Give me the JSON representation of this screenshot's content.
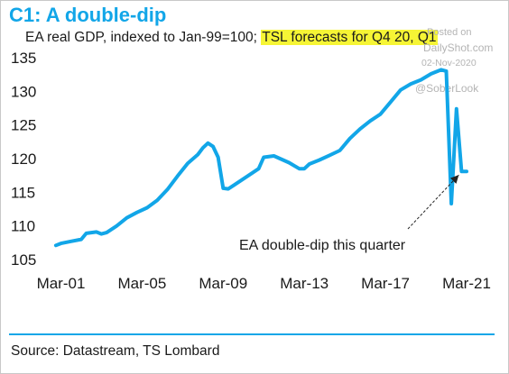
{
  "header": {
    "title": "C1: A double-dip",
    "subtitle_pre": "EA real GDP, indexed to Jan-99=100; ",
    "subtitle_highlight": "TSL forecasts for Q4 20, Q1"
  },
  "watermark": {
    "line1": "Posted on",
    "line2": "DailyShot.com",
    "line3": "02-Nov-2020",
    "line4": "@SoberLook"
  },
  "footer": {
    "source": "Source: Datastream, TS Lombard"
  },
  "colors": {
    "title": "#12a6e8",
    "series": "#12a6e8",
    "highlight": "#f6f535"
  },
  "chart_data": {
    "type": "line",
    "title": "C1: A double-dip",
    "ylim": [
      105,
      135
    ],
    "yticks": [
      105,
      110,
      115,
      120,
      125,
      130,
      135
    ],
    "xticks": [
      "Mar-01",
      "Mar-05",
      "Mar-09",
      "Mar-13",
      "Mar-17",
      "Mar-21"
    ],
    "grid": false,
    "series": [
      {
        "values": [
          [
            "2000-12",
            107.1
          ],
          [
            "2001-03",
            107.4
          ],
          [
            "2001-09",
            107.7
          ],
          [
            "2002-03",
            108.0
          ],
          [
            "2002-06",
            108.9
          ],
          [
            "2002-12",
            109.1
          ],
          [
            "2003-03",
            108.8
          ],
          [
            "2003-06",
            109.0
          ],
          [
            "2003-12",
            110.0
          ],
          [
            "2004-06",
            111.2
          ],
          [
            "2004-12",
            112.0
          ],
          [
            "2005-06",
            112.7
          ],
          [
            "2005-12",
            113.8
          ],
          [
            "2006-06",
            115.4
          ],
          [
            "2006-12",
            117.4
          ],
          [
            "2007-06",
            119.3
          ],
          [
            "2007-12",
            120.6
          ],
          [
            "2008-03",
            121.6
          ],
          [
            "2008-06",
            122.3
          ],
          [
            "2008-09",
            121.8
          ],
          [
            "2008-12",
            120.2
          ],
          [
            "2009-03",
            115.6
          ],
          [
            "2009-06",
            115.5
          ],
          [
            "2009-09",
            116.0
          ],
          [
            "2010-06",
            117.5
          ],
          [
            "2010-12",
            118.5
          ],
          [
            "2011-03",
            120.2
          ],
          [
            "2011-09",
            120.4
          ],
          [
            "2012-06",
            119.4
          ],
          [
            "2012-12",
            118.5
          ],
          [
            "2013-03",
            118.5
          ],
          [
            "2013-06",
            119.2
          ],
          [
            "2013-12",
            119.8
          ],
          [
            "2014-06",
            120.5
          ],
          [
            "2014-12",
            121.2
          ],
          [
            "2015-06",
            123.0
          ],
          [
            "2015-12",
            124.4
          ],
          [
            "2016-06",
            125.6
          ],
          [
            "2016-12",
            126.6
          ],
          [
            "2017-06",
            128.4
          ],
          [
            "2017-12",
            130.2
          ],
          [
            "2018-06",
            131.1
          ],
          [
            "2018-12",
            131.7
          ],
          [
            "2019-06",
            132.6
          ],
          [
            "2019-12",
            133.2
          ],
          [
            "2020-03",
            133.0
          ],
          [
            "2020-06",
            113.3
          ],
          [
            "2020-09",
            127.4
          ],
          [
            "2020-12",
            118.1
          ],
          [
            "2021-03",
            118.1
          ]
        ]
      }
    ],
    "annotations": [
      {
        "text": "EA double-dip this quarter",
        "points_to": [
          "2020-12",
          118.1
        ]
      }
    ]
  }
}
